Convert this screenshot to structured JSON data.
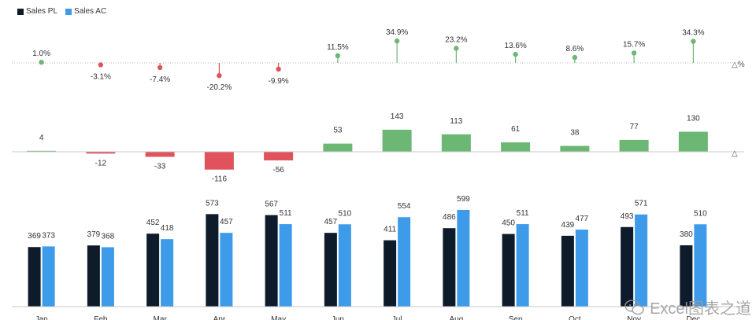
{
  "legend": {
    "pl_label": "Sales PL",
    "ac_label": "Sales AC"
  },
  "colors": {
    "pl": "#0d1b2a",
    "ac": "#3d9be9",
    "positive": "#6db774",
    "negative": "#e0525c",
    "axis": "#c8c8c8"
  },
  "axis_markers": {
    "pct": "△%",
    "delta": "△"
  },
  "watermark": {
    "text": "Excel图表之道",
    "icon": "wechat-icon"
  },
  "chart_data": [
    {
      "type": "lollipop",
      "title": "",
      "categories": [
        "Jan",
        "Feb",
        "Mar",
        "Apr",
        "May",
        "Jun",
        "Jul",
        "Aug",
        "Sep",
        "Oct",
        "Nov",
        "Dec"
      ],
      "values": [
        1.0,
        -3.1,
        -7.4,
        -20.2,
        -9.9,
        11.5,
        34.9,
        23.2,
        13.6,
        8.6,
        15.7,
        34.3
      ],
      "labels": [
        "1.0%",
        "-3.1%",
        "-7.4%",
        "-20.2%",
        "-9.9%",
        "11.5%",
        "34.9%",
        "23.2%",
        "13.6%",
        "8.6%",
        "15.7%",
        "34.3%"
      ],
      "unit": "%",
      "baseline_grid": "dotted"
    },
    {
      "type": "bar",
      "title": "",
      "categories": [
        "Jan",
        "Feb",
        "Mar",
        "Apr",
        "May",
        "Jun",
        "Jul",
        "Aug",
        "Sep",
        "Oct",
        "Nov",
        "Dec"
      ],
      "values": [
        4,
        -12,
        -33,
        -116,
        -56,
        53,
        143,
        113,
        61,
        38,
        77,
        130
      ]
    },
    {
      "type": "bar",
      "title": "",
      "categories": [
        "Jan",
        "Feb",
        "Mar",
        "Apr",
        "May",
        "Jun",
        "Jul",
        "Aug",
        "Sep",
        "Oct",
        "Nov",
        "Dec"
      ],
      "series": [
        {
          "name": "Sales PL",
          "values": [
            369,
            379,
            452,
            573,
            567,
            457,
            411,
            486,
            450,
            439,
            493,
            380
          ]
        },
        {
          "name": "Sales AC",
          "values": [
            373,
            368,
            418,
            457,
            511,
            510,
            554,
            599,
            511,
            477,
            571,
            510
          ]
        }
      ],
      "ylim": [
        0,
        600
      ],
      "legend": "top-left"
    }
  ]
}
